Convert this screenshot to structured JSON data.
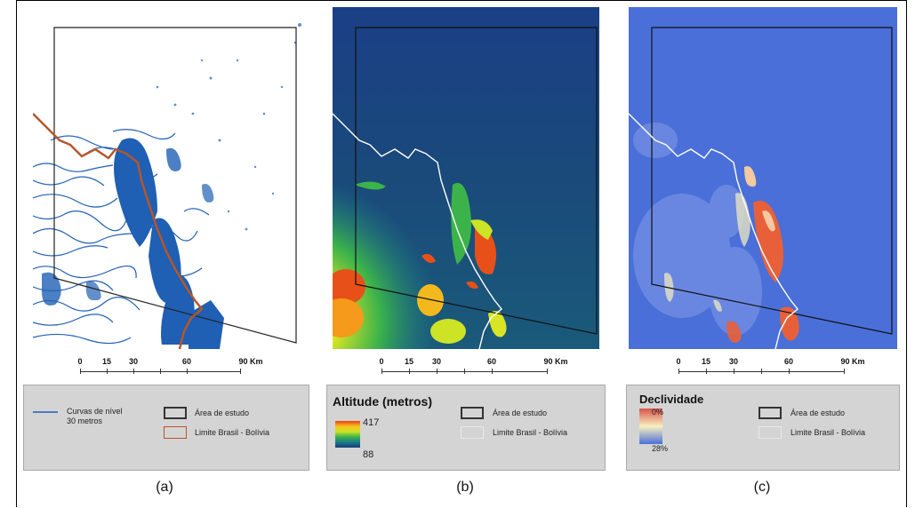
{
  "panels": [
    {
      "id": "a",
      "caption": "(a)",
      "scale": {
        "ticks": [
          "0",
          "15",
          "30",
          "60",
          "90 Km"
        ]
      },
      "legend": {
        "contour_label": "Curvas de nível\n30 metros",
        "study_area": "Área de estudo",
        "border": "Limite Brasil - Bolívia"
      }
    },
    {
      "id": "b",
      "caption": "(b)",
      "scale": {
        "ticks": [
          "0",
          "15",
          "30",
          "60",
          "90 Km"
        ]
      },
      "legend": {
        "title": "Altitude (metros)",
        "max": "417",
        "min": "88",
        "study_area": "Área de estudo",
        "border": "Limite Brasil - Bolívia"
      }
    },
    {
      "id": "c",
      "caption": "(c)",
      "scale": {
        "ticks": [
          "0",
          "15",
          "30",
          "60",
          "90 Km"
        ]
      },
      "legend": {
        "title": "Declividade",
        "min": "0%",
        "max": "28%",
        "study_area": "Área de estudo",
        "border": "Limite Brasil - Bolívia"
      }
    }
  ],
  "colors": {
    "contour": "#1f5fb4",
    "border_a": "#b5562a",
    "altitude_ramp": [
      "#1a3a7a",
      "#1a7a8a",
      "#3bb34a",
      "#cce326",
      "#f7c21a",
      "#e8401a"
    ],
    "slope_ramp": [
      "#d9534a",
      "#f7f0c0",
      "#4a6fd8"
    ]
  }
}
